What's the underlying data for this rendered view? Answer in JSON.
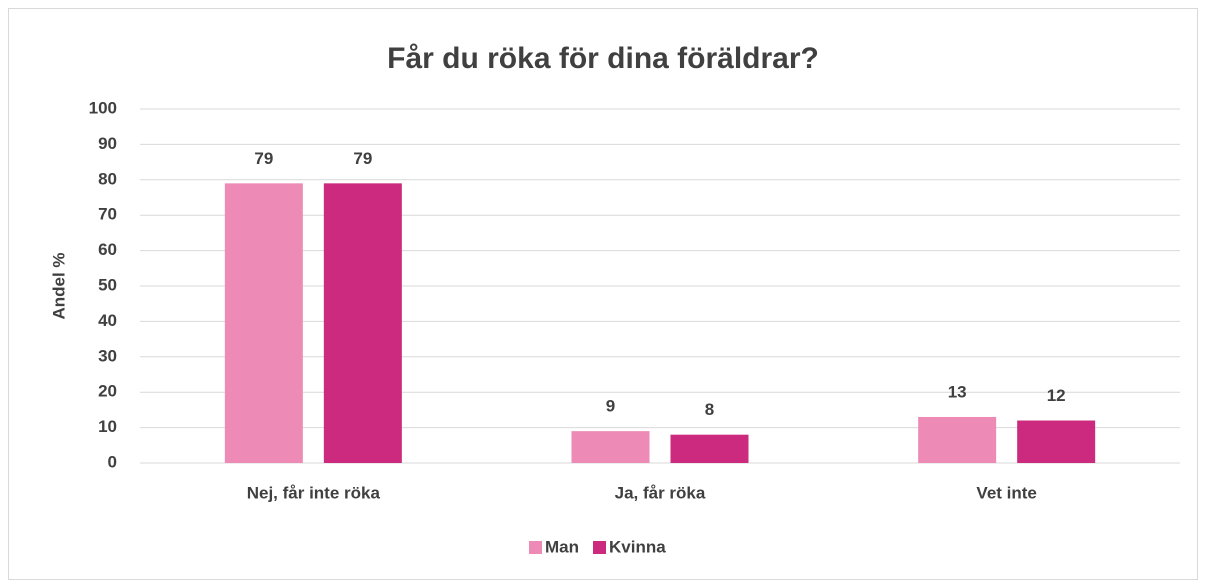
{
  "chart_data": {
    "type": "bar",
    "title": "Får du röka för dina föräldrar?",
    "y_label": "Andel %",
    "categories": [
      "Nej, får inte röka",
      "Ja, får röka",
      "Vet inte"
    ],
    "series": [
      {
        "name": "Man",
        "color": "#ee8ab6",
        "values": [
          79,
          9,
          13
        ]
      },
      {
        "name": "Kvinna",
        "color": "#cc2a7e",
        "values": [
          79,
          8,
          12
        ]
      }
    ],
    "ylim": [
      0,
      100
    ],
    "yticks": [
      0,
      10,
      20,
      30,
      40,
      50,
      60,
      70,
      80,
      90,
      100
    ],
    "grid": true,
    "legend": "bottom"
  }
}
